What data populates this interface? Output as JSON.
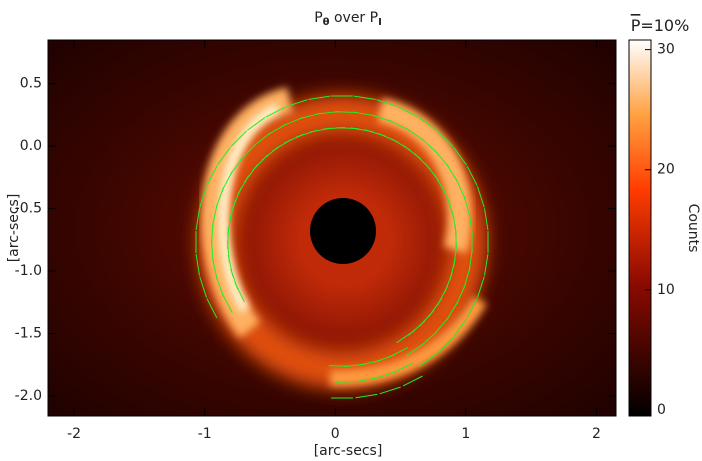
{
  "chart_data": {
    "type": "image",
    "title": [
      {
        "text": "P",
        "subscript": false
      },
      {
        "text": "θ",
        "subscript": true
      },
      {
        "text": " over P",
        "subscript": false
      },
      {
        "text": "I",
        "subscript": true
      }
    ],
    "x_label": "[arc-secs]",
    "y_label": "[arc-secs]",
    "xlim": [
      -2.2,
      2.15
    ],
    "ylim": [
      -2.16,
      0.85
    ],
    "xticks": [
      -2,
      -1,
      0,
      1,
      2
    ],
    "yticks": [
      0.5,
      {
        "value": 0,
        "label": "0.0"
      },
      -0.5,
      {
        "value": -1,
        "label": "-1.0"
      },
      -1.5,
      {
        "value": -2,
        "label": "-2.0"
      }
    ],
    "colormap": "hot",
    "vector_color": "#22ee22",
    "colorbar": {
      "label": "Counts",
      "clim": [
        -0.5,
        30.8
      ],
      "ticks": [
        0,
        10,
        20,
        30
      ]
    },
    "vector_scale": {
      "symbol": "P",
      "text": "=10%"
    }
  }
}
